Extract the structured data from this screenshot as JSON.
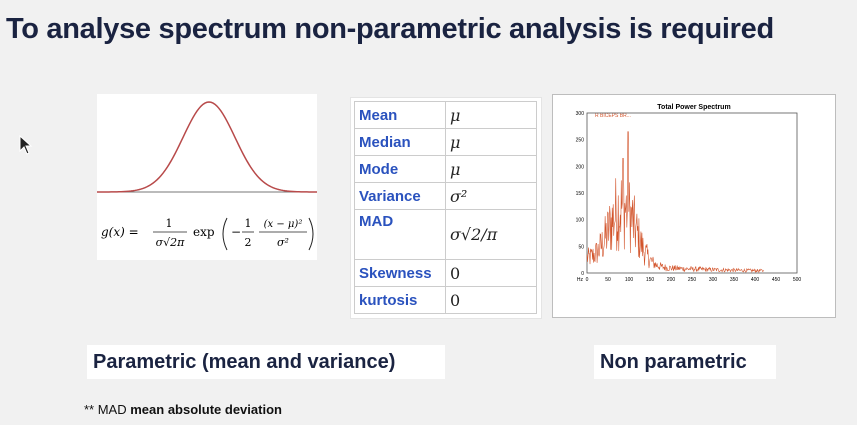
{
  "slide": {
    "title": "To analyse spectrum non-parametric analysis is required"
  },
  "parametric_figure": {
    "formula": {
      "lhs": "g(x) =",
      "frac1_num": "1",
      "frac1_den": "σ√2π",
      "exp": "exp",
      "frac2_num": "1",
      "frac2_den": "2",
      "frac3_num": "(x − μ)²",
      "frac3_den": "σ²",
      "minus": "−"
    },
    "curve_color": "#b84a4a"
  },
  "stats_table": {
    "rows": [
      {
        "label": "Mean",
        "value": "μ"
      },
      {
        "label": "Median",
        "value": "μ"
      },
      {
        "label": "Mode",
        "value": "μ"
      },
      {
        "label": "Variance",
        "value": "σ²"
      },
      {
        "label": "MAD",
        "value": "σ√2/π"
      },
      {
        "label": "Skewness",
        "value": "0"
      },
      {
        "label": "kurtosis",
        "value": "0"
      }
    ],
    "label_color": "#2a52be"
  },
  "spectrum_figure": {
    "title": "Total Power Spectrum",
    "legend": "R BICEPS BR...",
    "x_unit": "Hz",
    "x_ticks": [
      "0",
      "50",
      "100",
      "150",
      "200",
      "250",
      "300",
      "350",
      "400",
      "450",
      "500"
    ],
    "y_ticks": [
      "0",
      "50",
      "100",
      "150",
      "200",
      "250",
      "300"
    ],
    "line_color": "#d2532a"
  },
  "labels": {
    "parametric": "Parametric (mean and variance)",
    "non_parametric": "Non parametric"
  },
  "footnote": {
    "prefix": "** MAD",
    "bold": "mean absolute deviation"
  }
}
